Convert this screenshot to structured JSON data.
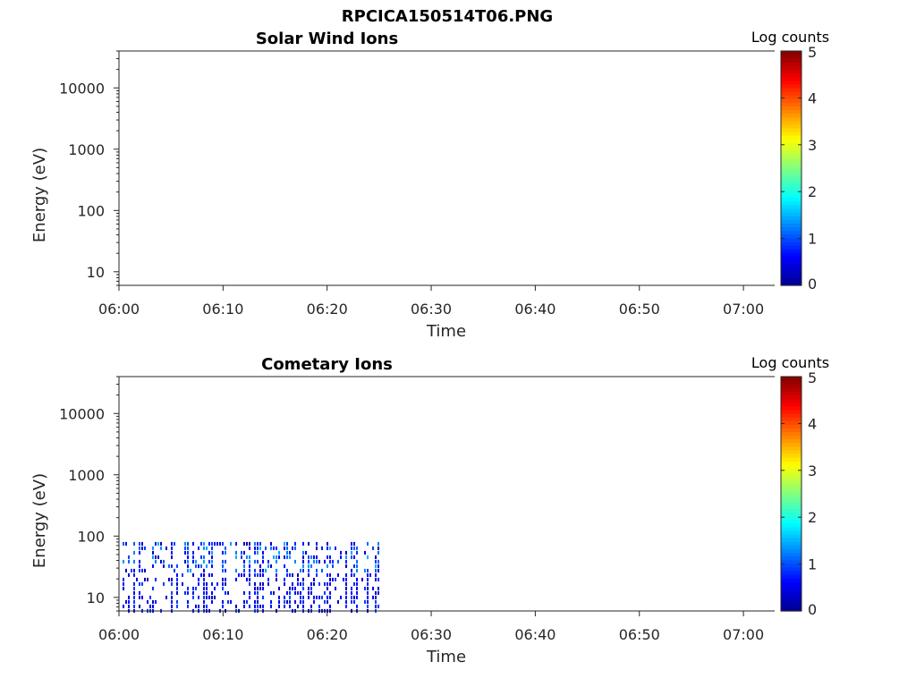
{
  "figure": {
    "title": "RPCICA150514T06.PNG"
  },
  "colors": {
    "colormap": [
      "#00008f",
      "#0000ff",
      "#0080ff",
      "#00ffff",
      "#80ff80",
      "#ffff00",
      "#ff8000",
      "#ff0000",
      "#800000"
    ],
    "axis": "#262626"
  },
  "chart_data": [
    {
      "type": "heatmap",
      "title": "Solar Wind Ions",
      "xlabel": "Time",
      "ylabel": "Energy (eV)",
      "x_range": [
        "06:00",
        "07:03"
      ],
      "x_ticks": [
        "06:00",
        "06:10",
        "06:20",
        "06:30",
        "06:40",
        "06:50",
        "07:00"
      ],
      "y_scale": "log",
      "y_range": [
        6,
        40000
      ],
      "y_ticks": [
        10,
        100,
        1000,
        10000
      ],
      "colorbar": {
        "label": "Log counts",
        "range": [
          0,
          5
        ],
        "ticks": [
          0,
          1,
          2,
          3,
          4,
          5
        ]
      },
      "data_present": {
        "time_start": "",
        "time_end": "",
        "energy_min": null,
        "energy_max": null,
        "log_counts_typical": null
      }
    },
    {
      "type": "heatmap",
      "title": "Cometary Ions",
      "xlabel": "Time",
      "ylabel": "Energy (eV)",
      "x_range": [
        "06:00",
        "07:03"
      ],
      "x_ticks": [
        "06:00",
        "06:10",
        "06:20",
        "06:30",
        "06:40",
        "06:50",
        "07:00"
      ],
      "y_scale": "log",
      "y_range": [
        6,
        40000
      ],
      "y_ticks": [
        10,
        100,
        1000,
        10000
      ],
      "colorbar": {
        "label": "Log counts",
        "range": [
          0,
          5
        ],
        "ticks": [
          0,
          1,
          2,
          3,
          4,
          5
        ]
      },
      "data_present": {
        "time_start": "06:00",
        "time_end": "06:25",
        "energy_min": 6,
        "energy_max": 80,
        "log_counts_typical": [
          0.2,
          1.5
        ]
      }
    }
  ]
}
